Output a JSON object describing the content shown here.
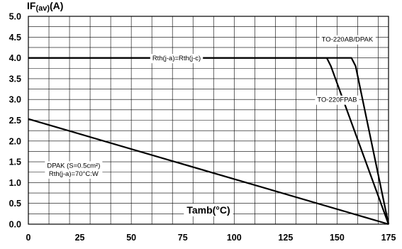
{
  "chart_data": {
    "type": "line",
    "ylabel_main": "IF",
    "ylabel_sub": "(av)",
    "ylabel_unit": "(A)",
    "xlabel": "Tamb(°C)",
    "xlim": [
      0,
      175
    ],
    "ylim": [
      0,
      5.0
    ],
    "x_ticks": [
      "0",
      "25",
      "50",
      "75",
      "100",
      "125",
      "150",
      "175"
    ],
    "y_ticks": [
      "0.0",
      "0.5",
      "1.0",
      "1.5",
      "2.0",
      "2.5",
      "3.0",
      "3.5",
      "4.0",
      "4.5",
      "5.0"
    ],
    "x_grid_step": 10,
    "y_grid_step": 0.25,
    "grid": true,
    "series": [
      {
        "name": "TO-220AB/DPAK",
        "points": [
          [
            0,
            4.0
          ],
          [
            157,
            4.0
          ],
          [
            159,
            3.8
          ],
          [
            175,
            0.0
          ]
        ]
      },
      {
        "name": "TO-220FPAB",
        "points": [
          [
            0,
            4.0
          ],
          [
            145,
            4.0
          ],
          [
            147,
            3.8
          ],
          [
            175,
            0.0
          ]
        ]
      },
      {
        "name": "DPAK (S=0.5cm²) Rth(j-a)=70°C:W",
        "points": [
          [
            0,
            2.53
          ],
          [
            175,
            0.0
          ]
        ]
      }
    ],
    "annotations": [
      {
        "lines": [
          "Rth(j-a)=Rth(j-c)"
        ],
        "x": 72,
        "y": 4.0
      },
      {
        "lines": [
          "TO-220AB/DPAK"
        ],
        "x": 155,
        "y": 4.45
      },
      {
        "lines": [
          "TO-220FPAB"
        ],
        "x": 150,
        "y": 3.0
      },
      {
        "lines": [
          "DPAK (S=0.5cm²)",
          "Rth(j-a)=70°C:W"
        ],
        "x": 22,
        "y": 1.32
      }
    ]
  }
}
